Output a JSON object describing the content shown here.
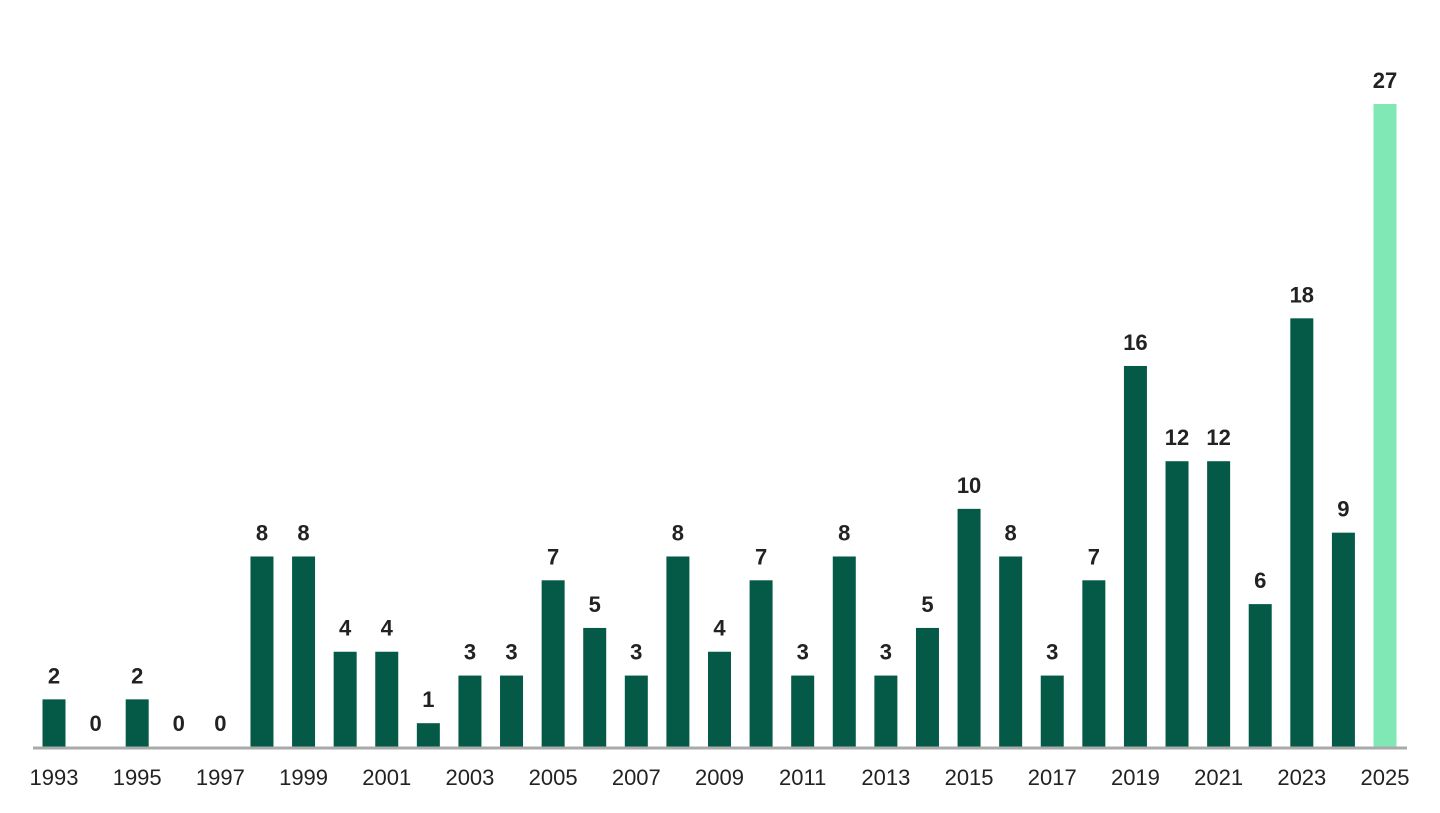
{
  "chart_data": {
    "type": "bar",
    "title": "",
    "xlabel": "",
    "ylabel": "",
    "categories": [
      "1993",
      "1994",
      "1995",
      "1996",
      "1997",
      "1998",
      "1999",
      "2000",
      "2001",
      "2002",
      "2003",
      "2004",
      "2005",
      "2006",
      "2007",
      "2008",
      "2009",
      "2010",
      "2011",
      "2012",
      "2013",
      "2014",
      "2015",
      "2016",
      "2017",
      "2018",
      "2019",
      "2020",
      "2021",
      "2022",
      "2023",
      "2024",
      "2025"
    ],
    "values": [
      2,
      0,
      2,
      0,
      0,
      8,
      8,
      4,
      4,
      1,
      3,
      3,
      7,
      5,
      3,
      8,
      4,
      7,
      3,
      8,
      3,
      5,
      10,
      8,
      3,
      7,
      16,
      12,
      12,
      6,
      18,
      9,
      27
    ],
    "tick_labels": [
      "1993",
      "1995",
      "1997",
      "1999",
      "2001",
      "2003",
      "2005",
      "2007",
      "2009",
      "2011",
      "2013",
      "2015",
      "2017",
      "2019",
      "2021",
      "2023",
      "2025"
    ],
    "ylim": [
      0,
      27
    ],
    "grid": false,
    "legend": "none",
    "colors": {
      "bar": "#045a47",
      "highlight": "#7fe8b4",
      "axis": "#aaaaaa",
      "text": "#222222"
    },
    "highlight_categories": [
      "2025"
    ]
  }
}
